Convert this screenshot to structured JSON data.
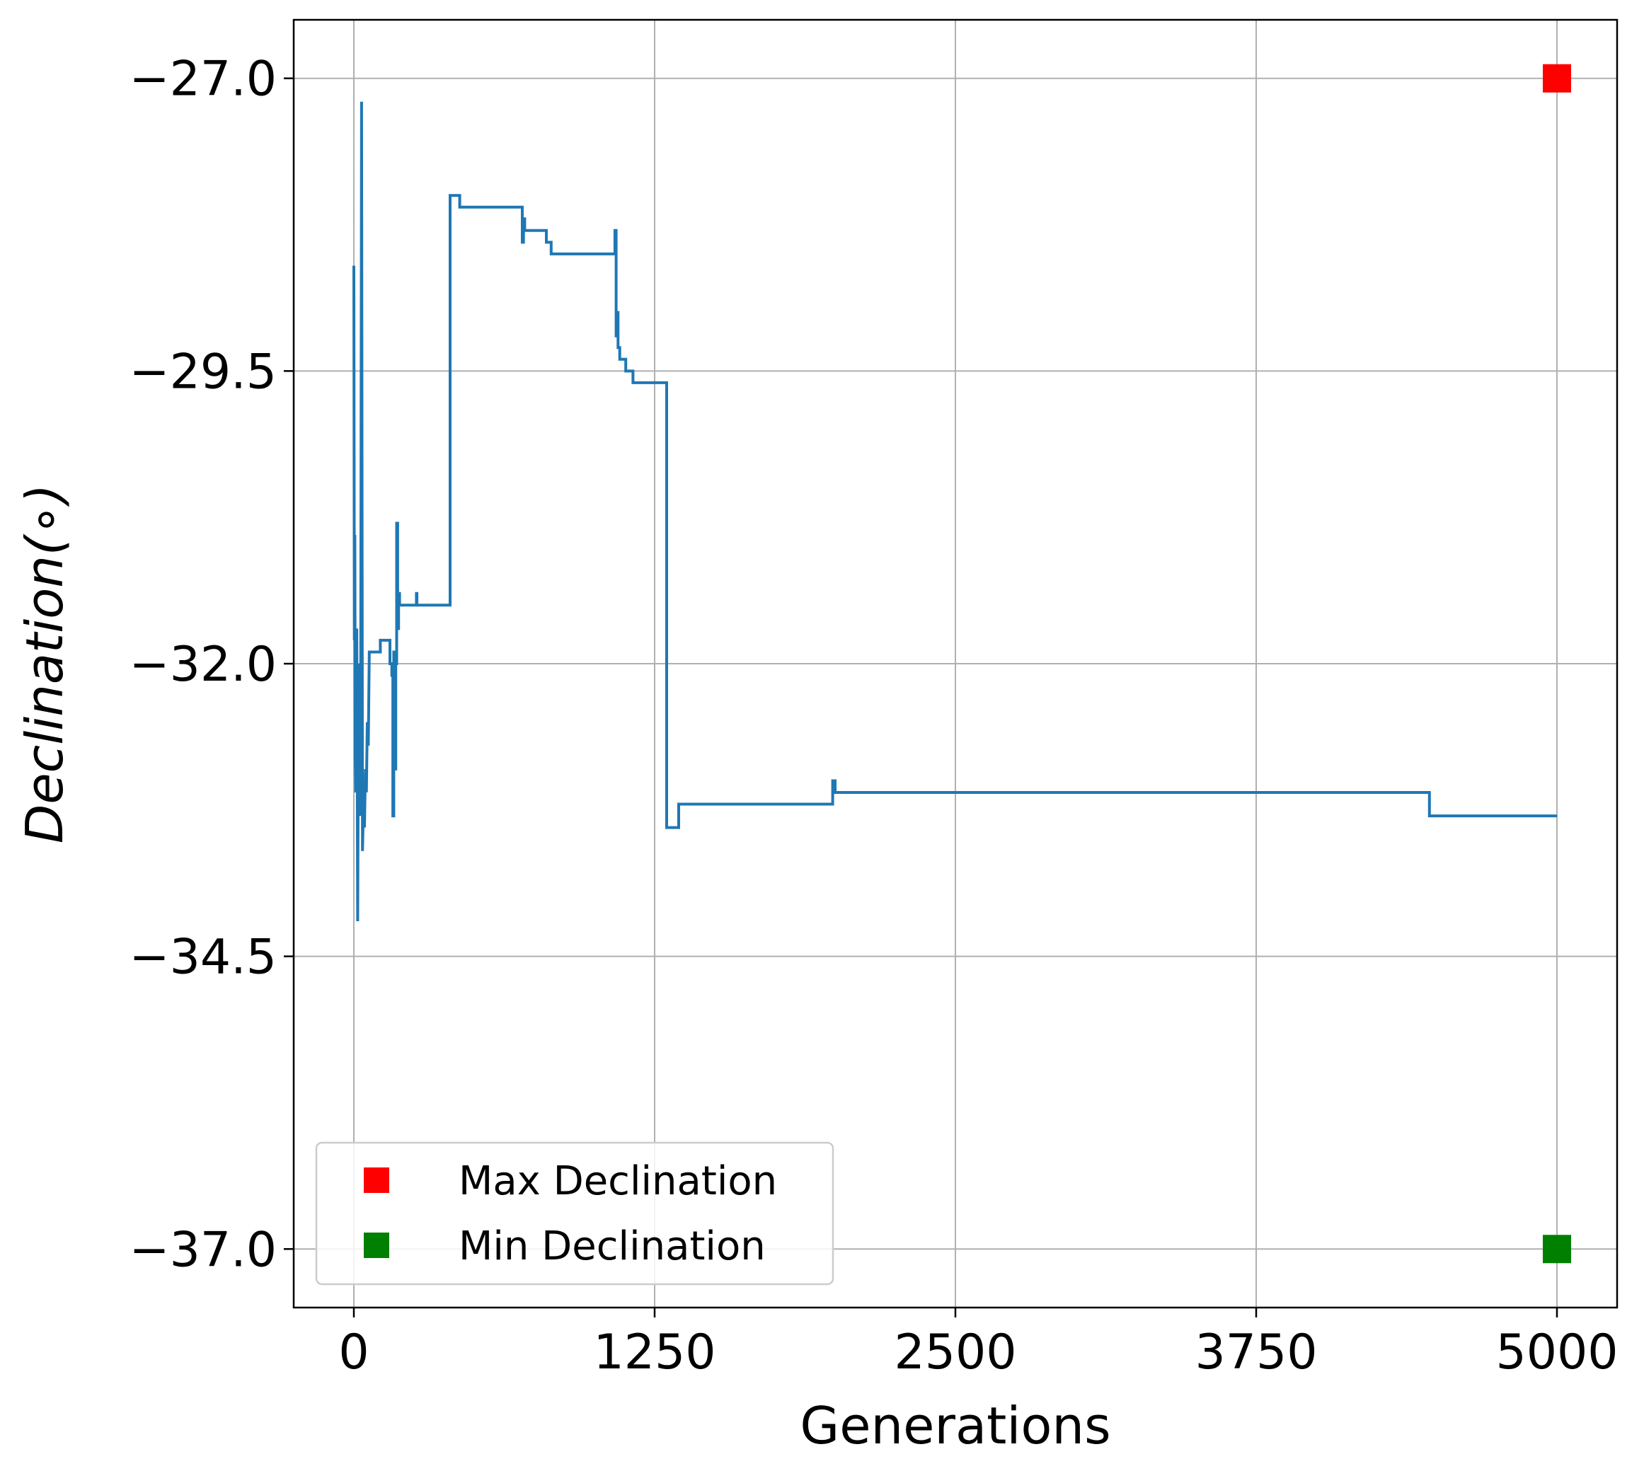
{
  "chart_data": {
    "type": "line",
    "title": "",
    "xlabel": "Generations",
    "ylabel": "Declination(∘)",
    "xlim": [
      -250,
      5250
    ],
    "ylim": [
      -37.5,
      -26.5
    ],
    "xticks": [
      0,
      1250,
      2500,
      3750,
      5000
    ],
    "xtick_labels": [
      "0",
      "1250",
      "2500",
      "3750",
      "5000"
    ],
    "yticks": [
      -27.0,
      -29.5,
      -32.0,
      -34.5,
      -37.0
    ],
    "ytick_labels": [
      "−27.0",
      "−29.5",
      "−32.0",
      "−34.5",
      "−37.0"
    ],
    "grid": true,
    "legend_position": "lower-left",
    "series": [
      {
        "color": "#1f77b4",
        "points": [
          [
            0,
            -28.6
          ],
          [
            2,
            -31.8
          ],
          [
            4,
            -30.9
          ],
          [
            6,
            -32.8
          ],
          [
            8,
            -33.1
          ],
          [
            12,
            -31.7
          ],
          [
            16,
            -34.2
          ],
          [
            20,
            -32.0
          ],
          [
            24,
            -33.3
          ],
          [
            28,
            -33.0
          ],
          [
            32,
            -27.2
          ],
          [
            36,
            -33.6
          ],
          [
            40,
            -33.2
          ],
          [
            44,
            -33.4
          ],
          [
            48,
            -32.9
          ],
          [
            52,
            -33.1
          ],
          [
            56,
            -32.5
          ],
          [
            60,
            -32.7
          ],
          [
            64,
            -31.9
          ],
          [
            110,
            -31.9
          ],
          [
            110,
            -31.8
          ],
          [
            150,
            -31.8
          ],
          [
            150,
            -32.0
          ],
          [
            158,
            -32.0
          ],
          [
            158,
            -32.1
          ],
          [
            162,
            -32.1
          ],
          [
            162,
            -33.3
          ],
          [
            166,
            -33.3
          ],
          [
            166,
            -31.9
          ],
          [
            170,
            -31.9
          ],
          [
            170,
            -32.9
          ],
          [
            174,
            -32.9
          ],
          [
            174,
            -32.0
          ],
          [
            178,
            -32.0
          ],
          [
            178,
            -30.8
          ],
          [
            182,
            -30.8
          ],
          [
            182,
            -31.7
          ],
          [
            186,
            -31.7
          ],
          [
            186,
            -31.4
          ],
          [
            190,
            -31.4
          ],
          [
            190,
            -31.5
          ],
          [
            230,
            -31.5
          ],
          [
            230,
            -31.5
          ],
          [
            260,
            -31.5
          ],
          [
            260,
            -31.4
          ],
          [
            262,
            -31.4
          ],
          [
            262,
            -31.5
          ],
          [
            400,
            -31.5
          ],
          [
            400,
            -28.0
          ],
          [
            440,
            -28.0
          ],
          [
            440,
            -28.1
          ],
          [
            500,
            -28.1
          ],
          [
            500,
            -28.1
          ],
          [
            700,
            -28.1
          ],
          [
            700,
            -28.4
          ],
          [
            705,
            -28.4
          ],
          [
            705,
            -28.2
          ],
          [
            710,
            -28.2
          ],
          [
            710,
            -28.3
          ],
          [
            800,
            -28.3
          ],
          [
            800,
            -28.4
          ],
          [
            820,
            -28.4
          ],
          [
            820,
            -28.5
          ],
          [
            1085,
            -28.5
          ],
          [
            1085,
            -28.3
          ],
          [
            1090,
            -28.3
          ],
          [
            1090,
            -29.2
          ],
          [
            1094,
            -29.2
          ],
          [
            1094,
            -29.0
          ],
          [
            1098,
            -29.0
          ],
          [
            1098,
            -29.3
          ],
          [
            1105,
            -29.3
          ],
          [
            1105,
            -29.4
          ],
          [
            1115,
            -29.4
          ],
          [
            1115,
            -29.4
          ],
          [
            1130,
            -29.4
          ],
          [
            1130,
            -29.5
          ],
          [
            1160,
            -29.5
          ],
          [
            1160,
            -29.6
          ],
          [
            1300,
            -29.6
          ],
          [
            1300,
            -33.4
          ],
          [
            1350,
            -33.4
          ],
          [
            1350,
            -33.2
          ],
          [
            1990,
            -33.2
          ],
          [
            1990,
            -33.0
          ],
          [
            2000,
            -33.0
          ],
          [
            2000,
            -33.1
          ],
          [
            4400,
            -33.1
          ],
          [
            4400,
            -33.1
          ],
          [
            4470,
            -33.1
          ],
          [
            4470,
            -33.3
          ],
          [
            5000,
            -33.3
          ]
        ]
      }
    ],
    "markers": [
      {
        "name": "Max Declination",
        "color": "#ff0000",
        "x": 5000,
        "y": -27.0
      },
      {
        "name": "Min Declination",
        "color": "#008000",
        "x": 5000,
        "y": -37.0
      }
    ]
  }
}
